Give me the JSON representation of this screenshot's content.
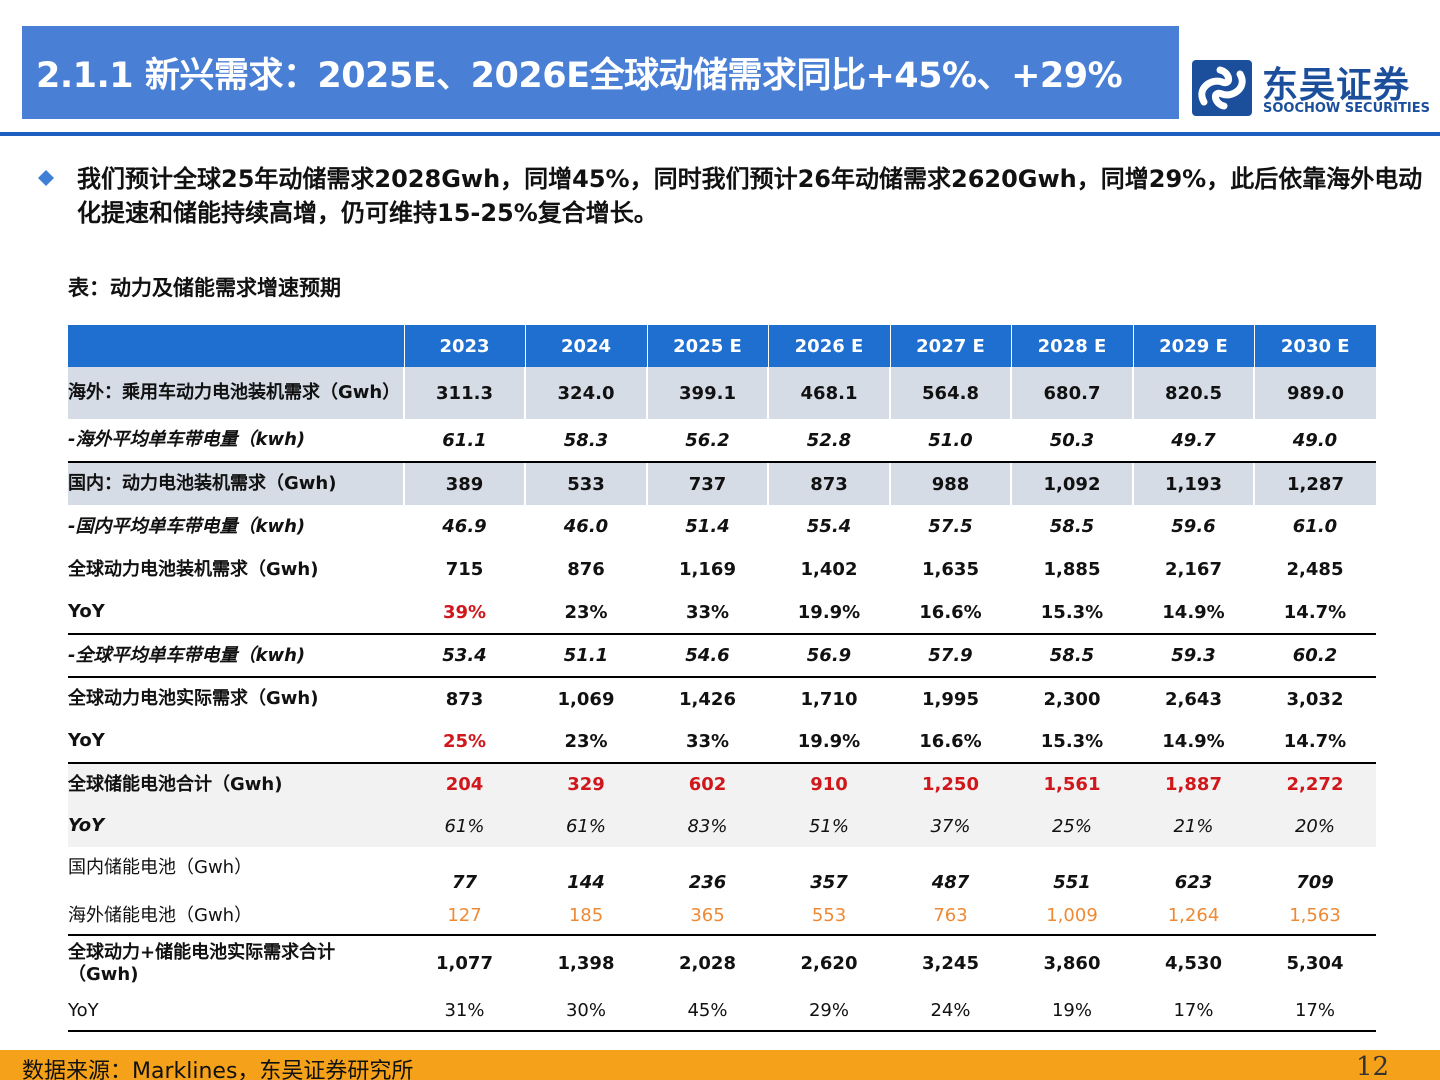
{
  "title": "2.1.1 新兴需求：2025E、2026E全球动储需求同比+45%、+29%",
  "logo": {
    "cn": "东吴证券",
    "en": "SOOCHOW SECURITIES",
    "mark": "soochow-logo-icon",
    "color": "#1b4f9c"
  },
  "bullet": {
    "icon": "diamond-bullet-icon",
    "text": "我们预计全球25年动储需求2028Gwh，同增45%，同时我们预计26年动储需求2620Gwh，同增29%，此后依靠海外电动化提速和储能持续高增，仍可维持15-25%复合增长。"
  },
  "table": {
    "caption": "表：动力及储能需求增速预期",
    "header": [
      "",
      "2023",
      "2024",
      "2025 E",
      "2026 E",
      "2027 E",
      "2028 E",
      "2029 E",
      "2030 E"
    ],
    "rows": [
      {
        "label": "海外：乘用车动力电池装机需求（Gwh）",
        "values": [
          "311.3",
          "324.0",
          "399.1",
          "468.1",
          "564.8",
          "680.7",
          "820.5",
          "989.0"
        ]
      },
      {
        "label": "-海外平均单车带电量（kwh)",
        "values": [
          "61.1",
          "58.3",
          "56.2",
          "52.8",
          "51.0",
          "50.3",
          "49.7",
          "49.0"
        ]
      },
      {
        "label": "国内：动力电池装机需求（Gwh)",
        "values": [
          "389",
          "533",
          "737",
          "873",
          "988",
          "1,092",
          "1,193",
          "1,287"
        ]
      },
      {
        "label": "-国内平均单车带电量（kwh)",
        "values": [
          "46.9",
          "46.0",
          "51.4",
          "55.4",
          "57.5",
          "58.5",
          "59.6",
          "61.0"
        ]
      },
      {
        "label": "全球动力电池装机需求（Gwh)",
        "values": [
          "715",
          "876",
          "1,169",
          "1,402",
          "1,635",
          "1,885",
          "2,167",
          "2,485"
        ]
      },
      {
        "label": "YoY",
        "values": [
          "39%",
          "23%",
          "33%",
          "19.9%",
          "16.6%",
          "15.3%",
          "14.9%",
          "14.7%"
        ]
      },
      {
        "label": "-全球平均单车带电量（kwh)",
        "values": [
          "53.4",
          "51.1",
          "54.6",
          "56.9",
          "57.9",
          "58.5",
          "59.3",
          "60.2"
        ]
      },
      {
        "label": "全球动力电池实际需求（Gwh)",
        "values": [
          "873",
          "1,069",
          "1,426",
          "1,710",
          "1,995",
          "2,300",
          "2,643",
          "3,032"
        ]
      },
      {
        "label": "YoY",
        "values": [
          "25%",
          "23%",
          "33%",
          "19.9%",
          "16.6%",
          "15.3%",
          "14.9%",
          "14.7%"
        ]
      },
      {
        "label": "全球储能电池合计（Gwh)",
        "values": [
          "204",
          "329",
          "602",
          "910",
          "1,250",
          "1,561",
          "1,887",
          "2,272"
        ]
      },
      {
        "label": "YoY",
        "values": [
          "61%",
          "61%",
          "83%",
          "51%",
          "37%",
          "25%",
          "21%",
          "20%"
        ]
      },
      {
        "label": "国内储能电池（Gwh）",
        "values": [
          "77",
          "144",
          "236",
          "357",
          "487",
          "551",
          "623",
          "709"
        ]
      },
      {
        "label": "海外储能电池（Gwh）",
        "values": [
          "127",
          "185",
          "365",
          "553",
          "763",
          "1,009",
          "1,264",
          "1,563"
        ]
      },
      {
        "label": "全球动力+储能电池实际需求合计（Gwh)",
        "values": [
          "1,077",
          "1,398",
          "2,028",
          "2,620",
          "3,245",
          "3,860",
          "4,530",
          "5,304"
        ]
      },
      {
        "label": "YoY",
        "values": [
          "31%",
          "30%",
          "45%",
          "29%",
          "24%",
          "19%",
          "17%",
          "17%"
        ]
      }
    ]
  },
  "colors": {
    "title_bar": "#4a7fd6",
    "header": "#1f6fd0",
    "highlight_red": "#d0171b",
    "highlight_orange": "#ee8a35",
    "footer": "#f5a21a"
  },
  "footer": {
    "source": "数据来源：Marklines，东吴证券研究所",
    "page": "12"
  }
}
